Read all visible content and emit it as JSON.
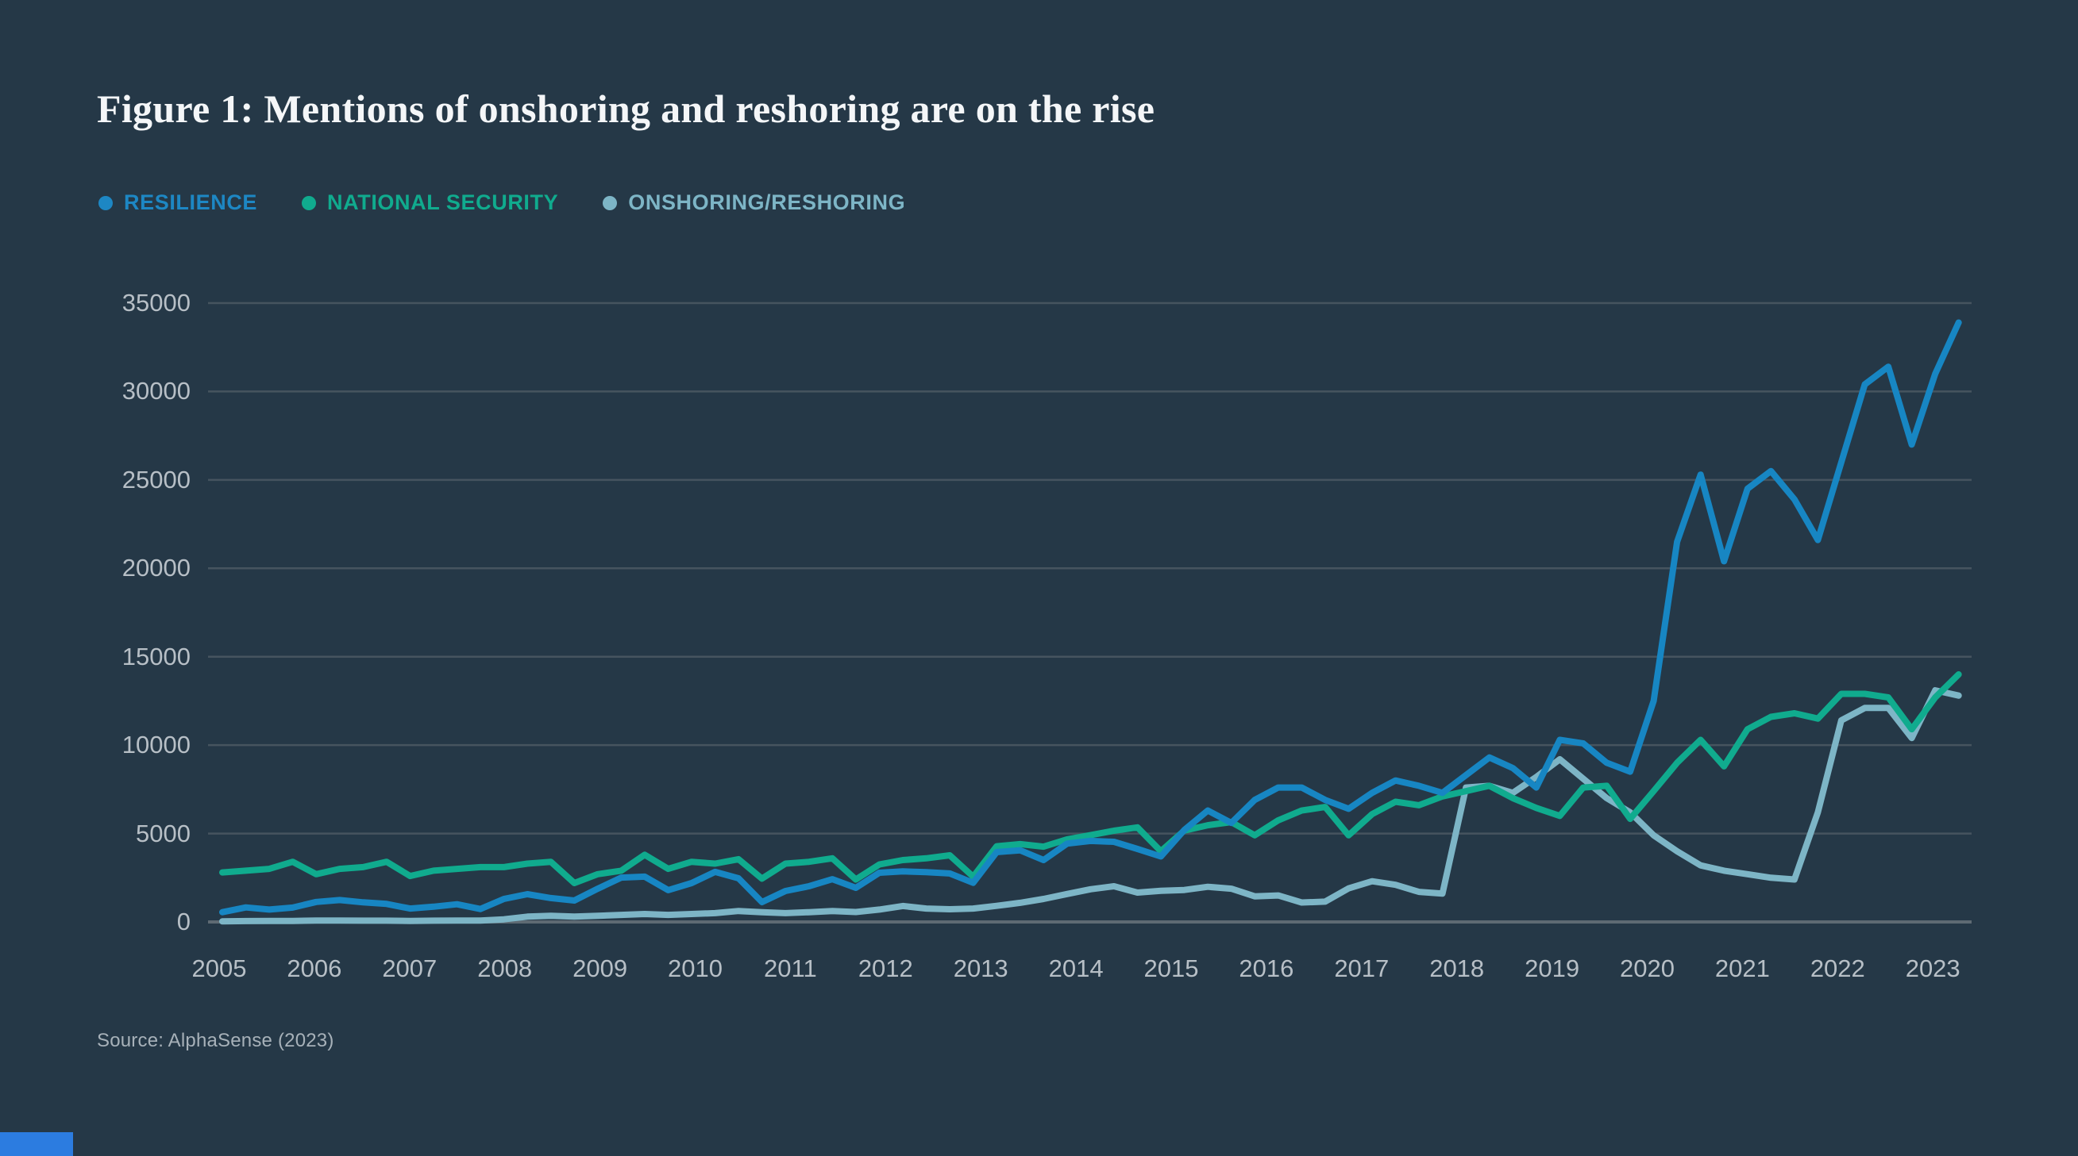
{
  "title": "Figure 1: Mentions of onshoring and reshoring are on the rise",
  "source": "Source: AlphaSense (2023)",
  "colors": {
    "background": "#253847",
    "title_text": "#f4f6f8",
    "tick_text": "#b7bfc6",
    "grid_line": "#46545f",
    "zero_axis_line": "#5e6a73",
    "source_text": "#a7b1b9",
    "corner_bar": "#2c7ce0",
    "resilience": "#1786c3",
    "national_security": "#10ab8e",
    "onshoring_reshoring": "#7db5c6"
  },
  "legend": [
    {
      "label": "RESILIENCE",
      "color": "#1d87c4"
    },
    {
      "label": "NATIONAL SECURITY",
      "color": "#10ab8e"
    },
    {
      "label": "ONSHORING/RESHORING",
      "color": "#7db5c6"
    }
  ],
  "chart_data": {
    "type": "line",
    "title": "Figure 1: Mentions of onshoring and reshoring are on the rise",
    "x_unit": "quarterly",
    "x_range": [
      "2005 Q1",
      "2023 Q3"
    ],
    "x_tick_labels": [
      "2005",
      "2006",
      "2007",
      "2008",
      "2009",
      "2010",
      "2011",
      "2012",
      "2013",
      "2014",
      "2015",
      "2016",
      "2017",
      "2018",
      "2019",
      "2020",
      "2021",
      "2022",
      "2023"
    ],
    "y_ticks": [
      0,
      5000,
      10000,
      15000,
      20000,
      25000,
      30000,
      35000
    ],
    "ylim": [
      0,
      35000
    ],
    "grid": "horizontal",
    "legend_position": "top-left",
    "series": [
      {
        "name": "ONSHORING/RESHORING",
        "color": "#7db5c6",
        "values": [
          30,
          50,
          60,
          60,
          80,
          80,
          70,
          70,
          60,
          70,
          80,
          80,
          150,
          300,
          350,
          300,
          350,
          400,
          450,
          400,
          450,
          500,
          620,
          550,
          500,
          550,
          620,
          560,
          700,
          900,
          760,
          720,
          760,
          910,
          1080,
          1300,
          1580,
          1850,
          2020,
          1660,
          1760,
          1810,
          1990,
          1880,
          1450,
          1500,
          1100,
          1150,
          1900,
          2300,
          2100,
          1700,
          1600,
          7600,
          7700,
          7300,
          8200,
          9200,
          8100,
          7000,
          6200,
          4900,
          4000,
          3200,
          2900,
          2700,
          2500,
          2400,
          6200,
          11400,
          12100,
          12100,
          10400,
          13100,
          12800
        ]
      },
      {
        "name": "NATIONAL SECURITY",
        "color": "#10ab8e",
        "values": [
          2800,
          2900,
          3000,
          3400,
          2700,
          3000,
          3100,
          3400,
          2600,
          2900,
          3000,
          3100,
          3100,
          3300,
          3400,
          2200,
          2700,
          2900,
          3800,
          3000,
          3400,
          3300,
          3550,
          2450,
          3300,
          3400,
          3600,
          2400,
          3250,
          3500,
          3600,
          3770,
          2560,
          4280,
          4400,
          4260,
          4670,
          4910,
          5160,
          5350,
          4000,
          5170,
          5470,
          5650,
          4900,
          5750,
          6300,
          6500,
          4900,
          6100,
          6800,
          6600,
          7100,
          7400,
          7700,
          7000,
          6450,
          6000,
          7600,
          7700,
          5830,
          7400,
          9000,
          10300,
          8800,
          10900,
          11600,
          11800,
          11500,
          12900,
          12900,
          12700,
          10900,
          12700,
          14000
        ]
      },
      {
        "name": "RESILIENCE",
        "color": "#1786c3",
        "values": [
          550,
          820,
          700,
          810,
          1130,
          1240,
          1110,
          1020,
          760,
          860,
          1000,
          730,
          1300,
          1570,
          1350,
          1210,
          1880,
          2510,
          2560,
          1800,
          2200,
          2830,
          2470,
          1120,
          1750,
          2020,
          2420,
          1930,
          2780,
          2860,
          2820,
          2740,
          2210,
          3950,
          4050,
          3500,
          4430,
          4580,
          4530,
          4130,
          3700,
          5200,
          6300,
          5600,
          6900,
          7600,
          7600,
          6900,
          6400,
          7300,
          8000,
          7700,
          7300,
          8300,
          9300,
          8700,
          7600,
          10300,
          10100,
          9000,
          8500,
          12500,
          21500,
          25300,
          20400,
          24500,
          25500,
          23900,
          21600,
          26000,
          30400,
          31400,
          27000,
          31000,
          33900
        ]
      }
    ]
  }
}
